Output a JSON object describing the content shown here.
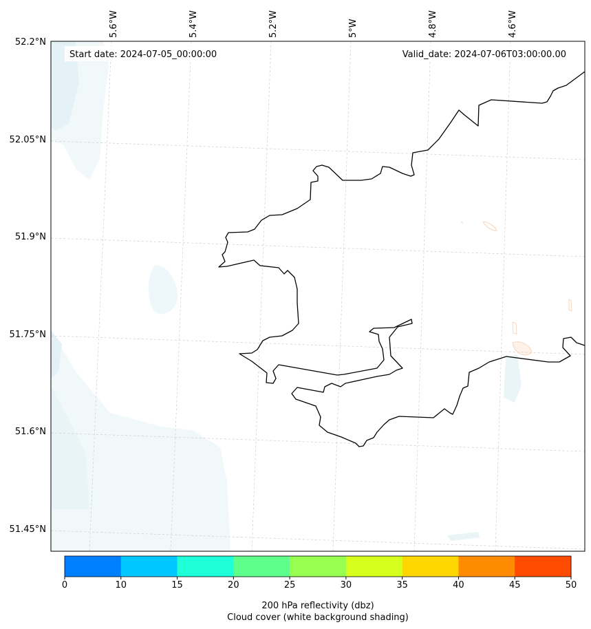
{
  "map": {
    "start_date": "Start date: 2024-07-05_00:00:00",
    "valid_date": "Valid_date: 2024-07-06T03:00:00.00",
    "lon_labels": [
      "5.6°W",
      "5.4°W",
      "5.2°W",
      "5°W",
      "4.8°W",
      "4.6°W"
    ],
    "lat_labels": [
      "52.2°N",
      "52.05°N",
      "51.9°N",
      "51.75°N",
      "51.6°N",
      "51.45°N"
    ]
  },
  "colorbar": {
    "ticks": [
      "0",
      "10",
      "15",
      "20",
      "25",
      "30",
      "35",
      "40",
      "45",
      "50"
    ],
    "colors": [
      "#0080ff",
      "#00c8ff",
      "#1effd7",
      "#5fff8c",
      "#96ff50",
      "#d7ff1e",
      "#ffd700",
      "#ff8c00",
      "#ff4b00"
    ],
    "label_line1": "200 hPa reflectivity (dbz)",
    "label_line2": "Cloud cover (white background shading)"
  }
}
